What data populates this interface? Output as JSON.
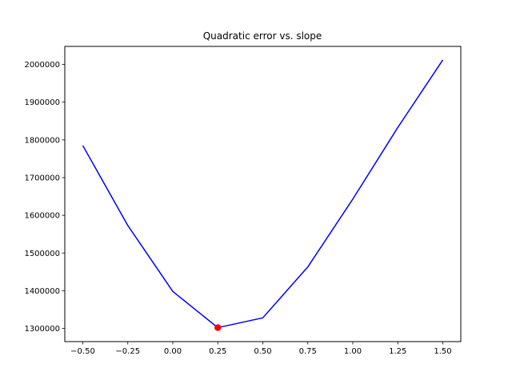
{
  "chart_data": {
    "type": "line",
    "title": "Quadratic error vs. slope",
    "xlabel": "",
    "ylabel": "",
    "x": [
      -0.5,
      -0.25,
      0.0,
      0.25,
      0.5,
      0.75,
      1.0,
      1.25,
      1.5
    ],
    "series": [
      {
        "values": [
          1785000,
          1573000,
          1398000,
          1302000,
          1328000,
          1463000,
          1643000,
          1833000,
          2012000
        ],
        "color": "#0000ff"
      }
    ],
    "highlight_point": {
      "x": 0.25,
      "y": 1302000,
      "color": "#ff0000"
    },
    "xlim": [
      -0.6,
      1.6
    ],
    "ylim": [
      1265000,
      2048000
    ],
    "xticks": [
      -0.5,
      -0.25,
      0.0,
      0.25,
      0.5,
      0.75,
      1.0,
      1.25,
      1.5
    ],
    "xtick_labels": [
      "−0.50",
      "−0.25",
      "0.00",
      "0.25",
      "0.50",
      "0.75",
      "1.00",
      "1.25",
      "1.50"
    ],
    "yticks": [
      1300000,
      1400000,
      1500000,
      1600000,
      1700000,
      1800000,
      1900000,
      2000000
    ],
    "ytick_labels": [
      "1300000",
      "1400000",
      "1500000",
      "1600000",
      "1700000",
      "1800000",
      "1900000",
      "2000000"
    ],
    "grid": false,
    "legend": "none"
  }
}
